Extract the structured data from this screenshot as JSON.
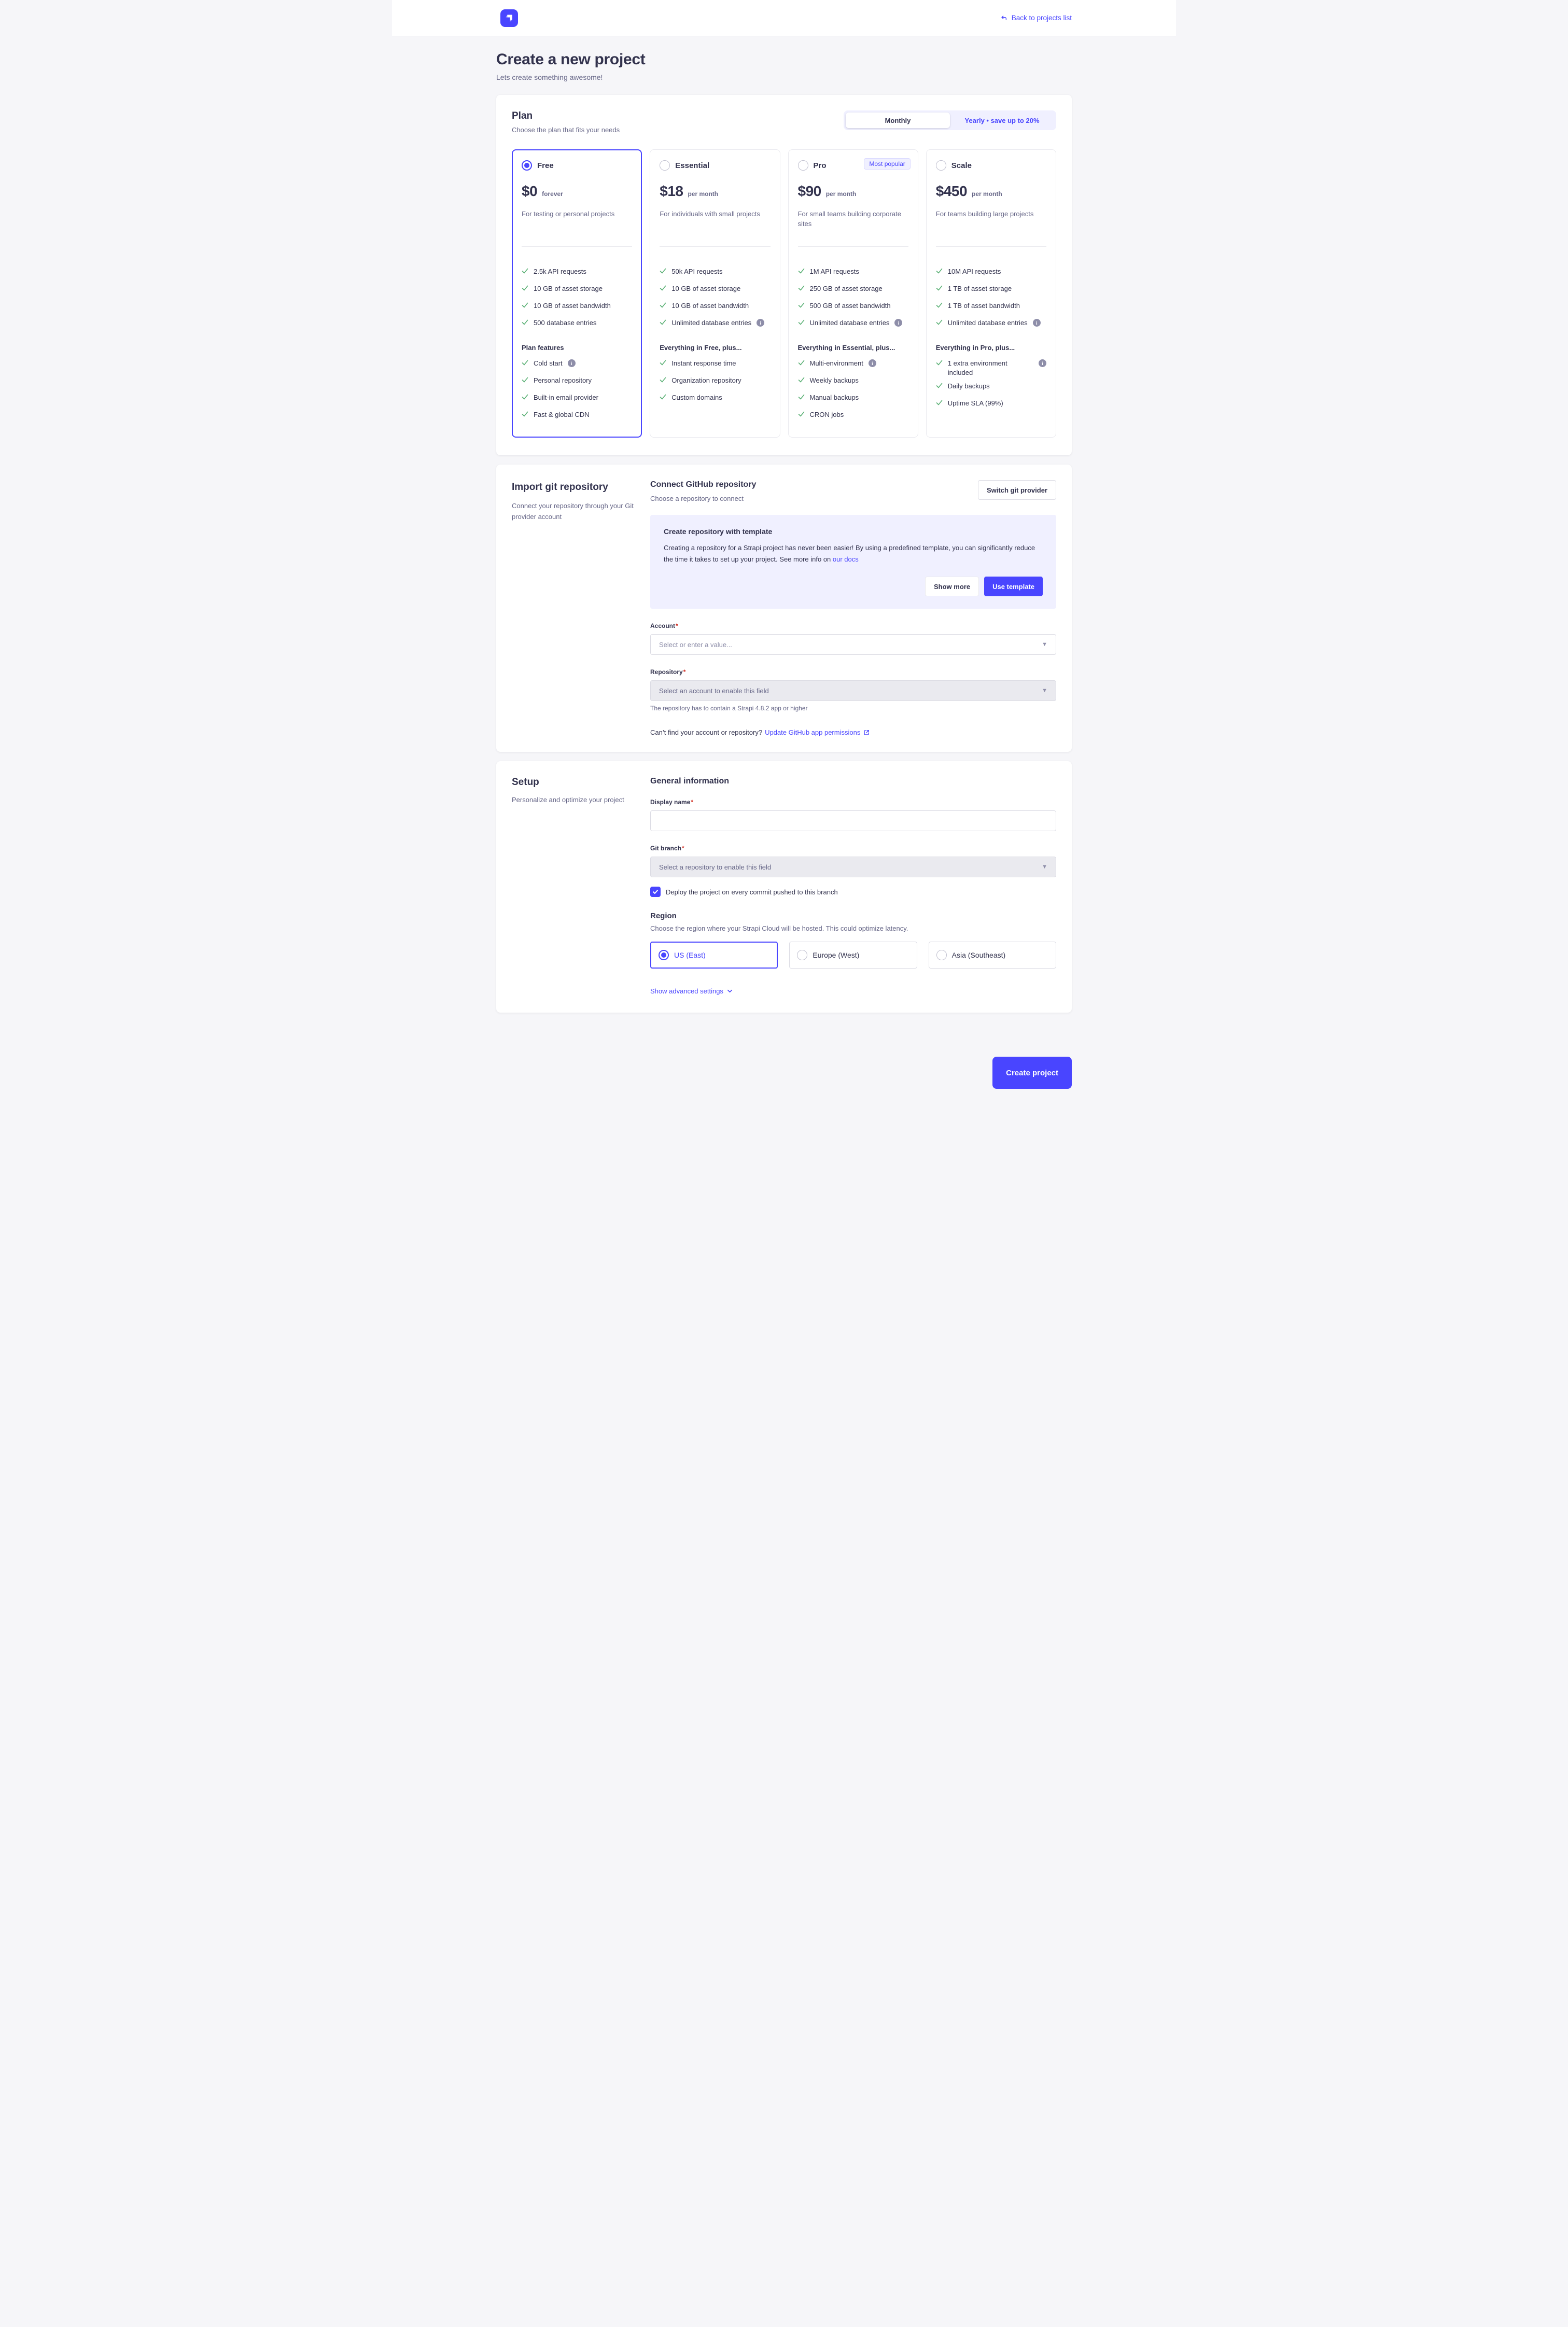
{
  "colors": {
    "primary": "#4945ff",
    "success_check": "#5cb176",
    "required_star": "#d02b20",
    "panel_lavender": "#f0f0ff"
  },
  "header": {
    "back_link": "Back to projects list",
    "logo_icon": "strapi-logo"
  },
  "page": {
    "title": "Create a new project",
    "subtitle": "Lets create something awesome!"
  },
  "plan_section": {
    "title": "Plan",
    "subtitle": "Choose the plan that fits your needs",
    "billing_toggle": {
      "monthly": "Monthly",
      "yearly": "Yearly • save up to 20%",
      "selected": "Monthly"
    },
    "plans": [
      {
        "name": "Free",
        "selected": true,
        "price": "$0",
        "period": "forever",
        "description": "For testing or personal projects",
        "features": [
          "2.5k API requests",
          "10 GB of asset storage",
          "10 GB of asset bandwidth",
          "500 database entries"
        ],
        "extra_heading": "Plan features",
        "extra_features": [
          {
            "text": "Cold start",
            "info": true
          },
          "Personal repository",
          "Built-in email provider",
          "Fast & global CDN"
        ]
      },
      {
        "name": "Essential",
        "selected": false,
        "price": "$18",
        "period": "per month",
        "description": "For individuals with small projects",
        "features": [
          "50k API requests",
          "10 GB of asset storage",
          "10 GB of asset bandwidth",
          {
            "text": "Unlimited database entries",
            "info": true
          }
        ],
        "extra_heading": "Everything in Free, plus...",
        "extra_features": [
          "Instant response time",
          "Organization repository",
          "Custom domains"
        ]
      },
      {
        "name": "Pro",
        "selected": false,
        "badge": "Most popular",
        "price": "$90",
        "period": "per month",
        "description": "For small teams building corporate sites",
        "features": [
          "1M API requests",
          "250 GB of asset storage",
          "500 GB of asset bandwidth",
          {
            "text": "Unlimited database entries",
            "info": true
          }
        ],
        "extra_heading": "Everything in Essential, plus...",
        "extra_features": [
          {
            "text": "Multi-environment",
            "info": true
          },
          "Weekly backups",
          "Manual backups",
          "CRON jobs"
        ]
      },
      {
        "name": "Scale",
        "selected": false,
        "price": "$450",
        "period": "per month",
        "description": "For teams building large projects",
        "features": [
          "10M API requests",
          "1 TB of asset storage",
          "1 TB of asset bandwidth",
          {
            "text": "Unlimited database entries",
            "info": true
          }
        ],
        "extra_heading": "Everything in Pro, plus...",
        "extra_features": [
          {
            "text": "1 extra environment included",
            "info": true,
            "info_right": true
          },
          "Daily backups",
          "Uptime SLA (99%)"
        ]
      }
    ]
  },
  "import_section": {
    "title": "Import git repository",
    "subtitle": "Connect your repository through your Git provider account",
    "main_title": "Connect GitHub repository",
    "main_subtitle": "Choose a repository to connect",
    "switch_button": "Switch git provider",
    "template_panel": {
      "title": "Create repository with template",
      "body_before_link": "Creating a repository for a Strapi project has never been easier! By using a predefined template, you can significantly reduce the time it takes to set up your project. See more info on ",
      "link": "our docs",
      "show_more_button": "Show more",
      "use_template_button": "Use template"
    },
    "account_field": {
      "label": "Account",
      "placeholder": "Select or enter a value..."
    },
    "repository_field": {
      "label": "Repository",
      "placeholder": "Select an account to enable this field",
      "helper": "The repository has to contain a Strapi 4.8.2 app or higher"
    },
    "permissions": {
      "text": "Can’t find your account or repository?",
      "link": "Update GitHub app permissions"
    }
  },
  "setup_section": {
    "title": "Setup",
    "subtitle": "Personalize and optimize your project",
    "general_title": "General information",
    "display_name": {
      "label": "Display name",
      "value": ""
    },
    "git_branch": {
      "label": "Git branch",
      "placeholder": "Select a repository to enable this field"
    },
    "deploy_checkbox": {
      "checked": true,
      "label": "Deploy the project on every commit pushed to this branch"
    },
    "region": {
      "title": "Region",
      "subtitle": "Choose the region where your Strapi Cloud will be hosted. This could optimize latency.",
      "options": [
        {
          "label": "US (East)",
          "selected": true
        },
        {
          "label": "Europe (West)",
          "selected": false
        },
        {
          "label": "Asia (Southeast)",
          "selected": false
        }
      ]
    },
    "advanced_link": "Show advanced settings"
  },
  "footer": {
    "create_button": "Create project"
  }
}
